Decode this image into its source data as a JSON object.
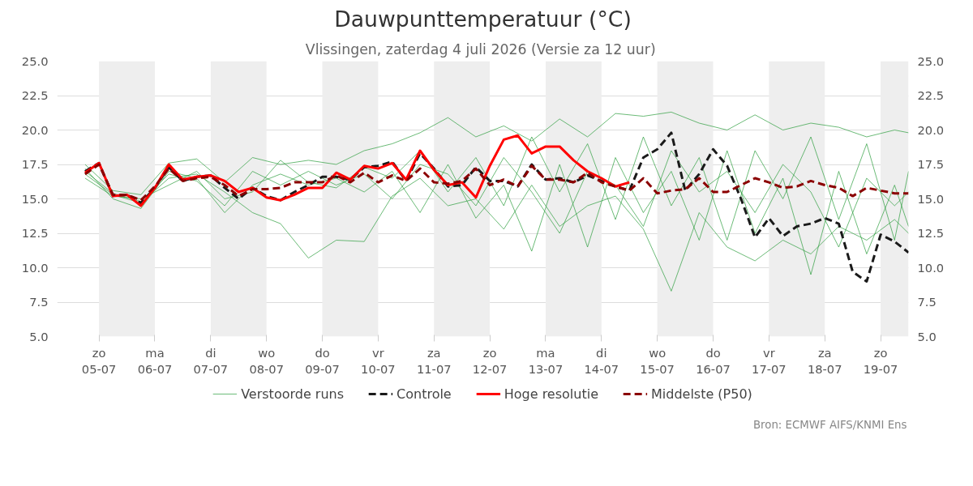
{
  "chart_data": {
    "type": "line",
    "title": "Dauwpunttemperatuur (°C)",
    "subtitle": "Vlissingen, zaterdag  4 juli 2026 (Versie za 12 uur)",
    "annotations": [
      "Bron: ECMWF AIFS/KNMI Ens"
    ],
    "x": [
      "2026-07-04T18:00",
      "2026-07-05T00:00",
      "2026-07-05T06:00",
      "2026-07-05T12:00",
      "2026-07-05T18:00",
      "2026-07-06T00:00",
      "2026-07-06T06:00",
      "2026-07-06T12:00",
      "2026-07-06T18:00",
      "2026-07-07T00:00",
      "2026-07-07T06:00",
      "2026-07-07T12:00",
      "2026-07-07T18:00",
      "2026-07-08T00:00",
      "2026-07-08T06:00",
      "2026-07-08T12:00",
      "2026-07-08T18:00",
      "2026-07-09T00:00",
      "2026-07-09T06:00",
      "2026-07-09T12:00",
      "2026-07-09T18:00",
      "2026-07-10T00:00",
      "2026-07-10T06:00",
      "2026-07-10T12:00",
      "2026-07-10T18:00",
      "2026-07-11T00:00",
      "2026-07-11T06:00",
      "2026-07-11T12:00",
      "2026-07-11T18:00",
      "2026-07-12T00:00",
      "2026-07-12T06:00",
      "2026-07-12T12:00",
      "2026-07-12T18:00",
      "2026-07-13T00:00",
      "2026-07-13T06:00",
      "2026-07-13T12:00",
      "2026-07-13T18:00",
      "2026-07-14T00:00",
      "2026-07-14T06:00",
      "2026-07-14T12:00",
      "2026-07-14T18:00",
      "2026-07-15T00:00",
      "2026-07-15T06:00",
      "2026-07-15T12:00",
      "2026-07-15T18:00",
      "2026-07-16T00:00",
      "2026-07-16T06:00",
      "2026-07-16T12:00",
      "2026-07-16T18:00",
      "2026-07-17T00:00",
      "2026-07-17T06:00",
      "2026-07-17T12:00",
      "2026-07-17T18:00",
      "2026-07-18T00:00",
      "2026-07-18T06:00",
      "2026-07-18T12:00",
      "2026-07-18T18:00",
      "2026-07-19T00:00",
      "2026-07-19T06:00",
      "2026-07-19T12:00"
    ],
    "series": [
      {
        "name": "Verstoorde runs",
        "color": "#2e9e3e",
        "line_style": "solid",
        "x": [
          "2026-07-04T18:00",
          "2026-07-05T06:00",
          "2026-07-05T18:00",
          "2026-07-06T06:00",
          "2026-07-06T18:00",
          "2026-07-07T06:00",
          "2026-07-07T18:00",
          "2026-07-08T06:00",
          "2026-07-08T18:00",
          "2026-07-09T06:00",
          "2026-07-09T18:00",
          "2026-07-10T06:00",
          "2026-07-10T18:00",
          "2026-07-11T06:00",
          "2026-07-11T18:00",
          "2026-07-12T06:00",
          "2026-07-12T18:00",
          "2026-07-13T06:00",
          "2026-07-13T18:00",
          "2026-07-14T06:00",
          "2026-07-14T18:00",
          "2026-07-15T06:00",
          "2026-07-15T18:00",
          "2026-07-16T06:00",
          "2026-07-16T18:00",
          "2026-07-17T06:00",
          "2026-07-17T18:00",
          "2026-07-18T06:00",
          "2026-07-18T18:00",
          "2026-07-19T06:00",
          "2026-07-19T12:00"
        ],
        "values": [
          16.8,
          15.3,
          14.7,
          16.5,
          16.8,
          15.5,
          14.0,
          13.2,
          10.7,
          12.0,
          11.9,
          15.2,
          16.5,
          14.5,
          15.0,
          12.8,
          16.0,
          13.0,
          14.5,
          15.2,
          12.8,
          8.3,
          14.0,
          11.5,
          10.5,
          12.0,
          11.0,
          13.0,
          12.0,
          13.5,
          12.5
        ]
      },
      {
        "color": "#2e9e3e",
        "line_style": "solid",
        "x": [
          "2026-07-04T18:00",
          "2026-07-05T06:00",
          "2026-07-05T18:00",
          "2026-07-06T06:00",
          "2026-07-06T18:00",
          "2026-07-07T06:00",
          "2026-07-07T18:00",
          "2026-07-08T06:00",
          "2026-07-08T18:00",
          "2026-07-09T06:00",
          "2026-07-09T18:00",
          "2026-07-10T06:00",
          "2026-07-10T18:00",
          "2026-07-11T06:00",
          "2026-07-11T18:00",
          "2026-07-12T06:00",
          "2026-07-12T18:00",
          "2026-07-13T06:00",
          "2026-07-13T18:00",
          "2026-07-14T06:00",
          "2026-07-14T18:00",
          "2026-07-15T06:00",
          "2026-07-15T18:00",
          "2026-07-16T06:00",
          "2026-07-16T18:00",
          "2026-07-17T06:00",
          "2026-07-17T18:00",
          "2026-07-18T06:00",
          "2026-07-18T18:00",
          "2026-07-19T06:00",
          "2026-07-19T12:00"
        ],
        "values": [
          17.5,
          15.6,
          15.3,
          17.6,
          17.9,
          16.2,
          18.0,
          17.5,
          17.8,
          17.5,
          18.5,
          19.0,
          19.8,
          20.9,
          19.5,
          20.3,
          19.2,
          20.8,
          19.5,
          21.2,
          21.0,
          21.3,
          20.5,
          20.0,
          21.1,
          20.0,
          20.5,
          20.2,
          19.5,
          20.0,
          19.8
        ]
      },
      {
        "color": "#2e9e3e",
        "line_style": "solid",
        "x": [
          "2026-07-04T18:00",
          "2026-07-05T06:00",
          "2026-07-05T18:00",
          "2026-07-06T06:00",
          "2026-07-06T18:00",
          "2026-07-07T06:00",
          "2026-07-07T18:00",
          "2026-07-08T06:00",
          "2026-07-08T18:00",
          "2026-07-09T06:00",
          "2026-07-09T18:00",
          "2026-07-10T06:00",
          "2026-07-10T18:00",
          "2026-07-11T06:00",
          "2026-07-11T18:00",
          "2026-07-12T06:00",
          "2026-07-12T18:00",
          "2026-07-13T06:00",
          "2026-07-13T18:00",
          "2026-07-14T06:00",
          "2026-07-14T18:00",
          "2026-07-15T06:00",
          "2026-07-15T18:00",
          "2026-07-16T06:00",
          "2026-07-16T18:00",
          "2026-07-17T06:00",
          "2026-07-17T18:00",
          "2026-07-18T06:00",
          "2026-07-18T18:00",
          "2026-07-19T06:00",
          "2026-07-19T12:00"
        ],
        "values": [
          17.2,
          15.0,
          14.3,
          17.0,
          16.5,
          14.0,
          16.0,
          16.8,
          16.0,
          16.5,
          15.5,
          17.0,
          14.0,
          17.5,
          13.6,
          16.0,
          11.2,
          17.5,
          11.5,
          18.0,
          14.0,
          17.0,
          12.0,
          18.5,
          12.5,
          16.5,
          9.5,
          17.0,
          11.0,
          16.0,
          13.0
        ]
      },
      {
        "color": "#2e9e3e",
        "line_style": "solid",
        "x": [
          "2026-07-04T18:00",
          "2026-07-05T06:00",
          "2026-07-05T18:00",
          "2026-07-06T06:00",
          "2026-07-06T18:00",
          "2026-07-07T06:00",
          "2026-07-07T18:00",
          "2026-07-08T06:00",
          "2026-07-08T18:00",
          "2026-07-09T06:00",
          "2026-07-09T18:00",
          "2026-07-10T06:00",
          "2026-07-10T18:00",
          "2026-07-11T06:00",
          "2026-07-11T18:00",
          "2026-07-12T06:00",
          "2026-07-12T18:00",
          "2026-07-13T06:00",
          "2026-07-13T18:00",
          "2026-07-14T06:00",
          "2026-07-14T18:00",
          "2026-07-15T06:00",
          "2026-07-15T18:00",
          "2026-07-16T06:00",
          "2026-07-16T18:00",
          "2026-07-17T06:00",
          "2026-07-17T18:00",
          "2026-07-18T06:00",
          "2026-07-18T18:00",
          "2026-07-19T06:00",
          "2026-07-19T12:00"
        ],
        "values": [
          16.5,
          15.2,
          15.0,
          16.0,
          17.0,
          15.0,
          15.5,
          17.8,
          16.2,
          15.8,
          17.3,
          16.5,
          18.5,
          15.5,
          18.0,
          14.5,
          19.5,
          15.5,
          19.0,
          13.5,
          19.5,
          14.5,
          18.0,
          12.0,
          18.5,
          15.0,
          19.5,
          13.5,
          19.0,
          12.0,
          17.0
        ]
      },
      {
        "color": "#2e9e3e",
        "line_style": "solid",
        "x": [
          "2026-07-04T18:00",
          "2026-07-05T06:00",
          "2026-07-05T18:00",
          "2026-07-06T06:00",
          "2026-07-06T18:00",
          "2026-07-07T06:00",
          "2026-07-07T18:00",
          "2026-07-08T06:00",
          "2026-07-08T18:00",
          "2026-07-09T06:00",
          "2026-07-09T18:00",
          "2026-07-10T06:00",
          "2026-07-10T18:00",
          "2026-07-11T06:00",
          "2026-07-11T18:00",
          "2026-07-12T06:00",
          "2026-07-12T18:00",
          "2026-07-13T06:00",
          "2026-07-13T18:00",
          "2026-07-14T06:00",
          "2026-07-14T18:00",
          "2026-07-15T06:00",
          "2026-07-15T18:00",
          "2026-07-16T06:00",
          "2026-07-16T18:00",
          "2026-07-17T06:00",
          "2026-07-17T18:00",
          "2026-07-18T06:00",
          "2026-07-18T18:00",
          "2026-07-19T06:00",
          "2026-07-19T12:00"
        ],
        "values": [
          17.0,
          15.4,
          14.8,
          16.8,
          16.3,
          14.5,
          17.0,
          16.0,
          17.0,
          16.0,
          16.8,
          15.0,
          17.5,
          16.8,
          14.5,
          18.0,
          15.5,
          12.5,
          17.0,
          16.0,
          13.0,
          18.5,
          15.5,
          17.0,
          14.0,
          17.5,
          15.5,
          11.5,
          16.5,
          14.5,
          15.5
        ]
      },
      {
        "name": "Controle",
        "color": "#1a1a1a",
        "line_style": "dashed",
        "values": [
          17.0,
          17.6,
          15.2,
          15.3,
          14.7,
          15.8,
          17.3,
          16.3,
          16.6,
          16.7,
          15.8,
          15.0,
          15.8,
          15.2,
          14.9,
          15.5,
          16.0,
          16.6,
          16.6,
          16.4,
          17.3,
          17.4,
          17.7,
          16.3,
          18.3,
          17.2,
          15.9,
          16.0,
          17.3,
          16.3,
          16.3,
          15.9,
          17.5,
          16.4,
          16.5,
          16.2,
          16.7,
          16.3,
          15.9,
          15.6,
          18.0,
          18.6,
          19.8,
          15.6,
          16.8,
          18.6,
          17.4,
          15.0,
          12.2,
          13.6,
          12.3,
          13.0,
          13.2,
          13.6,
          13.2,
          9.7,
          9.0,
          12.4,
          11.9,
          11.1
        ]
      },
      {
        "name": "Hoge resolutie",
        "color": "#ff0000",
        "line_style": "solid",
        "values": [
          16.9,
          17.6,
          15.2,
          15.3,
          14.5,
          15.8,
          17.5,
          16.4,
          16.6,
          16.7,
          16.3,
          15.5,
          15.8,
          15.1,
          14.9,
          15.3,
          15.8,
          15.8,
          16.9,
          16.4,
          17.4,
          17.2,
          17.6,
          16.4,
          18.5,
          17.1,
          16.0,
          16.2,
          15.1,
          17.4,
          19.3,
          19.6,
          18.3,
          18.8,
          18.8,
          17.8,
          17.0,
          16.5,
          15.9,
          16.2,
          null,
          null,
          null,
          null,
          null,
          null,
          null,
          null,
          null,
          null,
          null,
          null,
          null,
          null,
          null,
          null,
          null,
          null,
          null,
          null
        ]
      },
      {
        "name": "Middelste (P50)",
        "color": "#8b0000",
        "line_style": "dashed",
        "values": [
          16.8,
          17.5,
          15.3,
          15.3,
          14.9,
          15.9,
          17.2,
          16.3,
          16.5,
          16.6,
          16.0,
          15.2,
          15.7,
          15.7,
          15.8,
          16.2,
          16.2,
          16.2,
          16.7,
          16.2,
          16.9,
          16.2,
          16.7,
          16.3,
          17.2,
          16.2,
          16.1,
          16.3,
          17.2,
          16.0,
          16.4,
          15.9,
          17.4,
          16.4,
          16.4,
          16.2,
          16.9,
          16.2,
          15.9,
          15.6,
          16.5,
          15.4,
          15.6,
          15.7,
          16.5,
          15.5,
          15.5,
          16.0,
          16.5,
          16.2,
          15.8,
          15.9,
          16.3,
          16.0,
          15.8,
          15.2,
          15.8,
          15.6,
          15.4,
          15.4
        ]
      }
    ],
    "xlim": [
      "2026-07-04T06:00",
      "2026-07-19T12:00"
    ],
    "xticks": [
      {
        "value": "2026-07-05",
        "label": "zo\n05-07"
      },
      {
        "value": "2026-07-06",
        "label": "ma\n06-07"
      },
      {
        "value": "2026-07-07",
        "label": "di\n07-07"
      },
      {
        "value": "2026-07-08",
        "label": "wo\n08-07"
      },
      {
        "value": "2026-07-09",
        "label": "do\n09-07"
      },
      {
        "value": "2026-07-10",
        "label": "vr\n10-07"
      },
      {
        "value": "2026-07-11",
        "label": "za\n11-07"
      },
      {
        "value": "2026-07-12",
        "label": "zo\n12-07"
      },
      {
        "value": "2026-07-13",
        "label": "ma\n13-07"
      },
      {
        "value": "2026-07-14",
        "label": "di\n14-07"
      },
      {
        "value": "2026-07-15",
        "label": "wo\n15-07"
      },
      {
        "value": "2026-07-16",
        "label": "do\n16-07"
      },
      {
        "value": "2026-07-17",
        "label": "vr\n17-07"
      },
      {
        "value": "2026-07-18",
        "label": "za\n18-07"
      },
      {
        "value": "2026-07-19",
        "label": "zo\n19-07"
      }
    ],
    "ylim": [
      5,
      25
    ],
    "yticks": [
      {
        "value": 5,
        "label": "5.0"
      },
      {
        "value": 7.5,
        "label": "7.5"
      },
      {
        "value": 10,
        "label": "10.0"
      },
      {
        "value": 12.5,
        "label": "12.5"
      },
      {
        "value": 15,
        "label": "15.0"
      },
      {
        "value": 17.5,
        "label": "17.5"
      },
      {
        "value": 20,
        "label": "20.0"
      },
      {
        "value": 22.5,
        "label": "22.5"
      },
      {
        "value": 25,
        "label": "25.0"
      }
    ],
    "y2lim": [
      5,
      25
    ],
    "y2ticks": [
      {
        "value": 5,
        "label": "5.0"
      },
      {
        "value": 7.5,
        "label": "7.5"
      },
      {
        "value": 10,
        "label": "10.0"
      },
      {
        "value": 12.5,
        "label": "12.5"
      },
      {
        "value": 15,
        "label": "15.0"
      },
      {
        "value": 17.5,
        "label": "17.5"
      },
      {
        "value": 20,
        "label": "20.0"
      },
      {
        "value": 22.5,
        "label": "22.5"
      },
      {
        "value": 25,
        "label": "25.0"
      }
    ],
    "bands": [
      {
        "axis": "x",
        "from": "2026-07-05",
        "to": "2026-07-06",
        "color": "#eeeeee"
      },
      {
        "axis": "x",
        "from": "2026-07-07",
        "to": "2026-07-08",
        "color": "#eeeeee"
      },
      {
        "axis": "x",
        "from": "2026-07-09",
        "to": "2026-07-10",
        "color": "#eeeeee"
      },
      {
        "axis": "x",
        "from": "2026-07-11",
        "to": "2026-07-12",
        "color": "#eeeeee"
      },
      {
        "axis": "x",
        "from": "2026-07-13",
        "to": "2026-07-14",
        "color": "#eeeeee"
      },
      {
        "axis": "x",
        "from": "2026-07-15",
        "to": "2026-07-16",
        "color": "#eeeeee"
      },
      {
        "axis": "x",
        "from": "2026-07-17",
        "to": "2026-07-18",
        "color": "#eeeeee"
      },
      {
        "axis": "x",
        "from": "2026-07-19",
        "to": "2026-07-19T12:00",
        "color": "#eeeeee"
      }
    ],
    "grid": "y",
    "legend": "bottom"
  }
}
